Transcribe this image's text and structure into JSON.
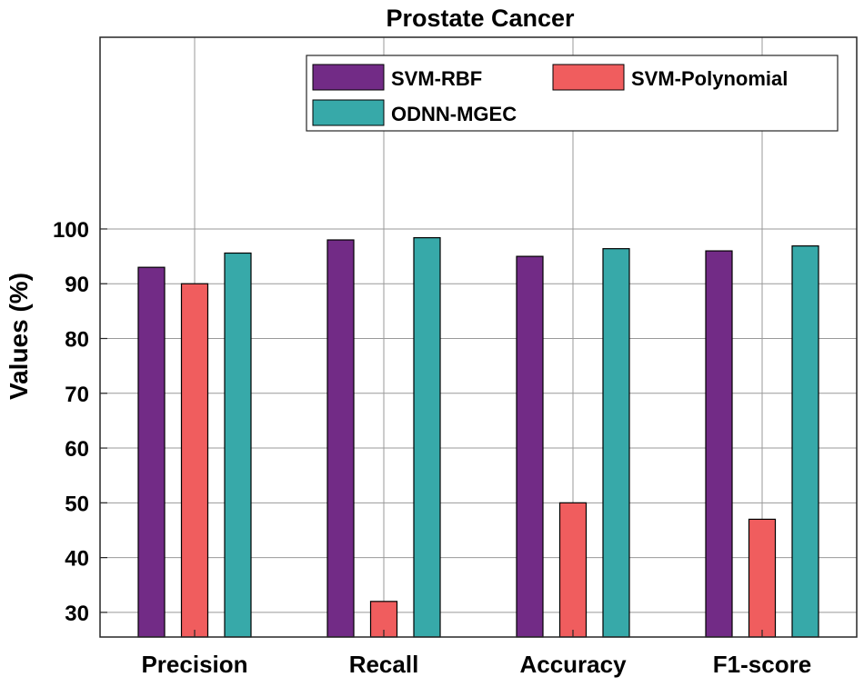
{
  "chart_data": {
    "type": "bar",
    "title": "Prostate Cancer",
    "xlabel": "",
    "ylabel": "Values (%)",
    "categories": [
      "Precision",
      "Recall",
      "Accuracy",
      "F1-score"
    ],
    "series": [
      {
        "name": "SVM-RBF",
        "color": "#722b86",
        "values": [
          93,
          98,
          95,
          96
        ]
      },
      {
        "name": "SVM-Polynomial",
        "color": "#f05d5e",
        "values": [
          90,
          32,
          50,
          47
        ]
      },
      {
        "name": "ODNN-MGEC",
        "color": "#37a9a9",
        "values": [
          95.6,
          98.4,
          96.4,
          96.9
        ]
      }
    ],
    "yticks": [
      30,
      40,
      50,
      60,
      70,
      80,
      90,
      100
    ],
    "ylim": [
      25.5,
      135
    ],
    "grid": true,
    "legend": "top-right"
  }
}
